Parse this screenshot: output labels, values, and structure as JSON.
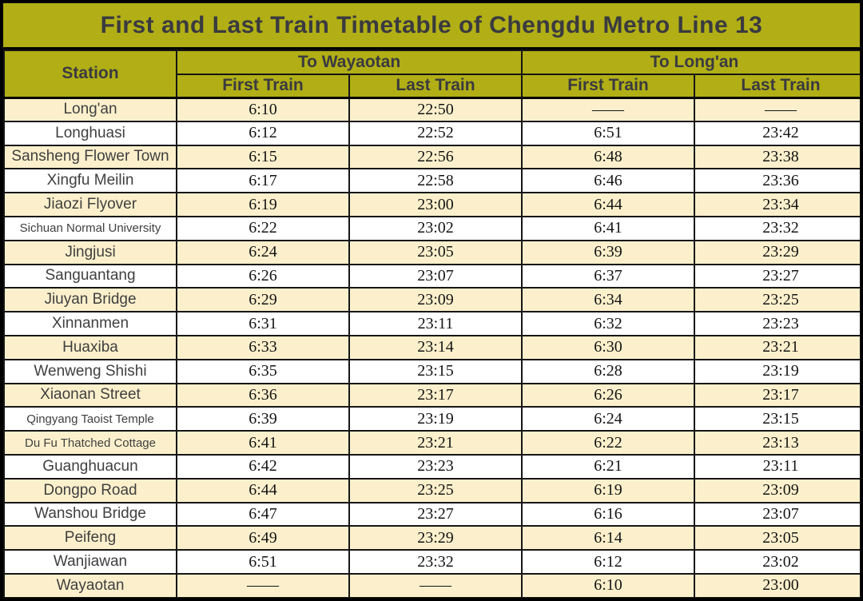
{
  "title": "First and Last Train Timetable of Chengdu Metro Line 13",
  "colors": {
    "header_background": "#b1af15",
    "header_text": "#3a3a40",
    "row_alt_background": "#fcf0cc",
    "row_background": "#ffffff",
    "border": "#161616"
  },
  "table": {
    "station_header": "Station",
    "groups": [
      {
        "label": "To Wayaotan",
        "sub_headers": [
          "First Train",
          "Last Train"
        ]
      },
      {
        "label": "To Long'an",
        "sub_headers": [
          "First Train",
          "Last Train"
        ]
      }
    ],
    "no_service_mark": "——",
    "rows": [
      {
        "station": "Long'an",
        "wayaotan_first": "6:10",
        "wayaotan_last": "22:50",
        "longan_first": "——",
        "longan_last": "——"
      },
      {
        "station": "Longhuasi",
        "wayaotan_first": "6:12",
        "wayaotan_last": "22:52",
        "longan_first": "6:51",
        "longan_last": "23:42"
      },
      {
        "station": "Sansheng Flower Town",
        "wayaotan_first": "6:15",
        "wayaotan_last": "22:56",
        "longan_first": "6:48",
        "longan_last": "23:38"
      },
      {
        "station": "Xingfu Meilin",
        "wayaotan_first": "6:17",
        "wayaotan_last": "22:58",
        "longan_first": "6:46",
        "longan_last": "23:36"
      },
      {
        "station": "Jiaozi Flyover",
        "wayaotan_first": "6:19",
        "wayaotan_last": "23:00",
        "longan_first": "6:44",
        "longan_last": "23:34"
      },
      {
        "station": "Sichuan Normal University",
        "wayaotan_first": "6:22",
        "wayaotan_last": "23:02",
        "longan_first": "6:41",
        "longan_last": "23:32"
      },
      {
        "station": "Jingjusi",
        "wayaotan_first": "6:24",
        "wayaotan_last": "23:05",
        "longan_first": "6:39",
        "longan_last": "23:29"
      },
      {
        "station": "Sanguantang",
        "wayaotan_first": "6:26",
        "wayaotan_last": "23:07",
        "longan_first": "6:37",
        "longan_last": "23:27"
      },
      {
        "station": "Jiuyan Bridge",
        "wayaotan_first": "6:29",
        "wayaotan_last": "23:09",
        "longan_first": "6:34",
        "longan_last": "23:25"
      },
      {
        "station": "Xinnanmen",
        "wayaotan_first": "6:31",
        "wayaotan_last": "23:11",
        "longan_first": "6:32",
        "longan_last": "23:23"
      },
      {
        "station": "Huaxiba",
        "wayaotan_first": "6:33",
        "wayaotan_last": "23:14",
        "longan_first": "6:30",
        "longan_last": "23:21"
      },
      {
        "station": "Wenweng Shishi",
        "wayaotan_first": "6:35",
        "wayaotan_last": "23:15",
        "longan_first": "6:28",
        "longan_last": "23:19"
      },
      {
        "station": "Xiaonan Street",
        "wayaotan_first": "6:36",
        "wayaotan_last": "23:17",
        "longan_first": "6:26",
        "longan_last": "23:17"
      },
      {
        "station": "Qingyang Taoist Temple",
        "wayaotan_first": "6:39",
        "wayaotan_last": "23:19",
        "longan_first": "6:24",
        "longan_last": "23:15"
      },
      {
        "station": "Du Fu Thatched Cottage",
        "wayaotan_first": "6:41",
        "wayaotan_last": "23:21",
        "longan_first": "6:22",
        "longan_last": "23:13"
      },
      {
        "station": "Guanghuacun",
        "wayaotan_first": "6:42",
        "wayaotan_last": "23:23",
        "longan_first": "6:21",
        "longan_last": "23:11"
      },
      {
        "station": "Dongpo Road",
        "wayaotan_first": "6:44",
        "wayaotan_last": "23:25",
        "longan_first": "6:19",
        "longan_last": "23:09"
      },
      {
        "station": "Wanshou Bridge",
        "wayaotan_first": "6:47",
        "wayaotan_last": "23:27",
        "longan_first": "6:16",
        "longan_last": "23:07"
      },
      {
        "station": "Peifeng",
        "wayaotan_first": "6:49",
        "wayaotan_last": "23:29",
        "longan_first": "6:14",
        "longan_last": "23:05"
      },
      {
        "station": "Wanjiawan",
        "wayaotan_first": "6:51",
        "wayaotan_last": "23:32",
        "longan_first": "6:12",
        "longan_last": "23:02"
      },
      {
        "station": "Wayaotan",
        "wayaotan_first": "——",
        "wayaotan_last": "——",
        "longan_first": "6:10",
        "longan_last": "23:00"
      }
    ]
  }
}
